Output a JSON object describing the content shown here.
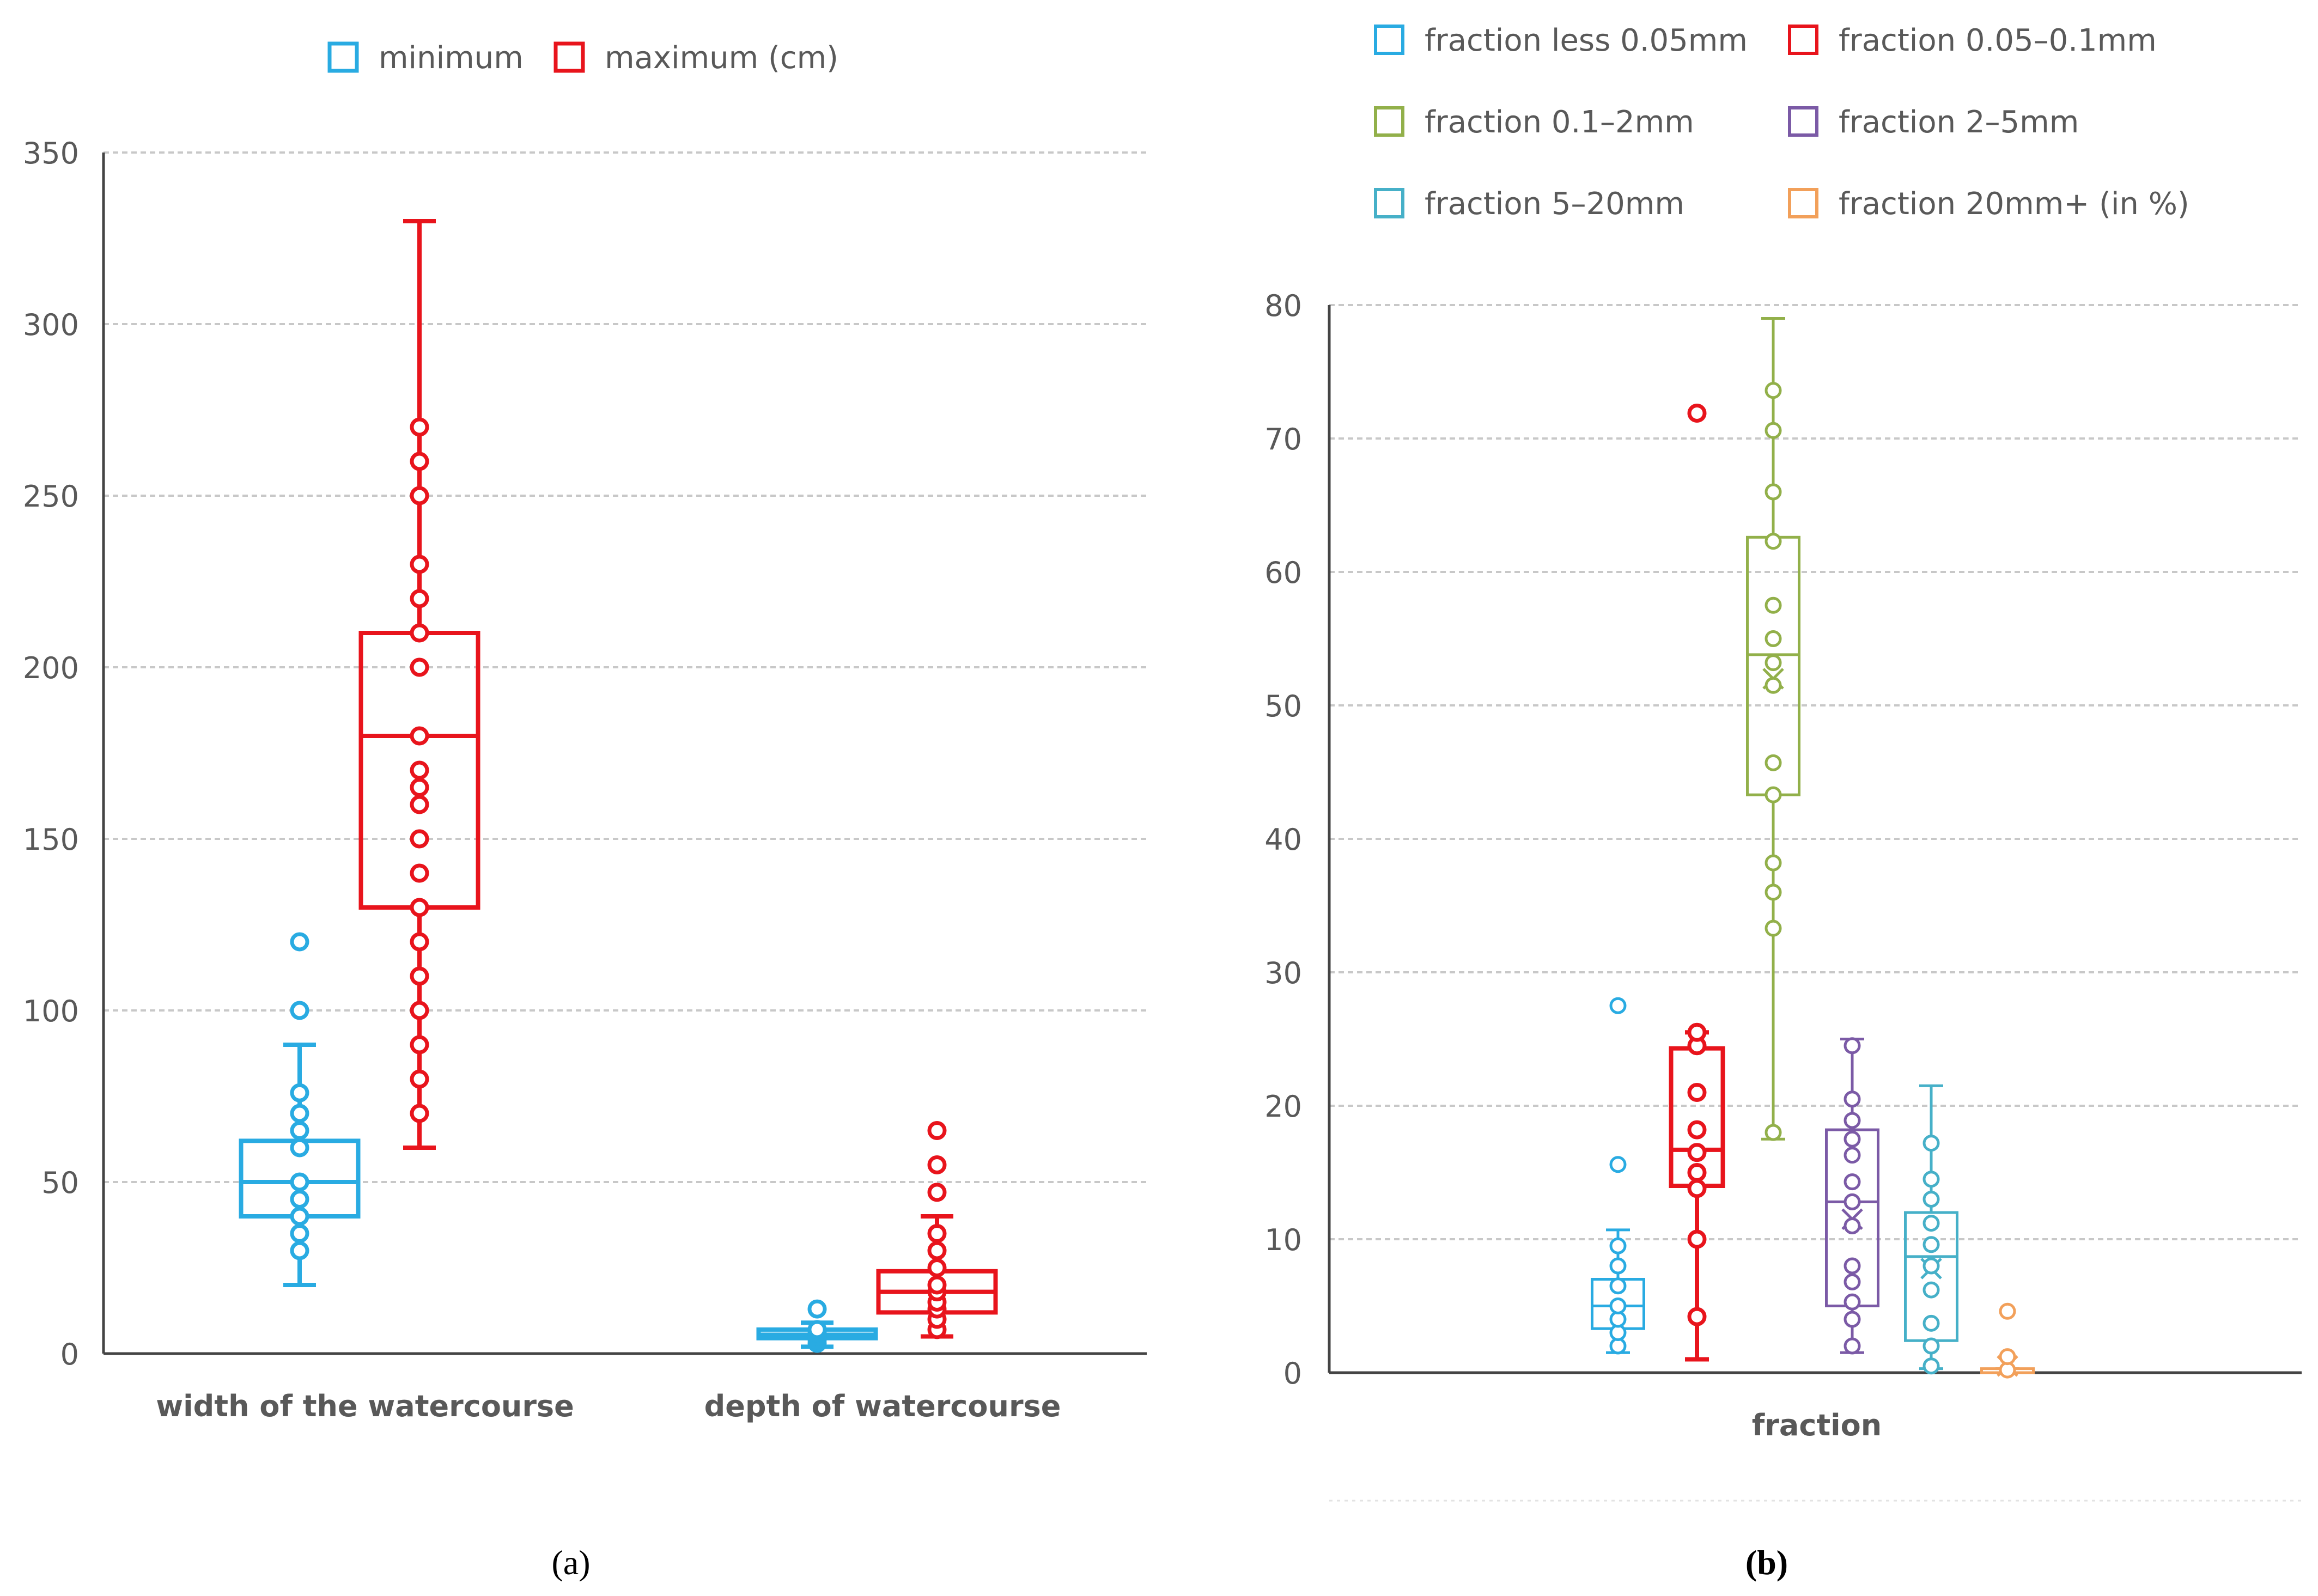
{
  "colors": {
    "blue": "#29ABE2",
    "red": "#E8141C",
    "green": "#92B04A",
    "purple": "#7B5AA6",
    "teal": "#46B0C8",
    "orange": "#F2A05A",
    "grid": "#C8C8C8",
    "axis": "#444444",
    "text": "#595959"
  },
  "panels": {
    "a": {
      "caption": "(a)"
    },
    "b": {
      "caption": "(b)"
    }
  },
  "chart_data": [
    {
      "type": "box",
      "panel": "a",
      "title": "",
      "xlabel": "",
      "ylabel": "",
      "ylim": [
        0,
        350
      ],
      "yticks": [
        0,
        50,
        100,
        150,
        200,
        250,
        300,
        350
      ],
      "ytick_labels": [
        "0",
        "50",
        "100",
        "150",
        "200",
        "250",
        "300",
        "350"
      ],
      "grid": true,
      "legend_position": "top-center",
      "categories": [
        "width of the watercourse",
        "depth of watercourse"
      ],
      "series": [
        {
          "name": "minimum",
          "color": "#29ABE2",
          "boxes": [
            {
              "category": 0,
              "whisker_low": 20,
              "q1": 40,
              "median": 50,
              "q3": 62,
              "whisker_high": 90,
              "points": [
                30,
                35,
                40,
                45,
                50,
                60,
                65,
                70,
                76,
                100,
                120
              ]
            },
            {
              "category": 1,
              "whisker_low": 2,
              "q1": 4.5,
              "median": 5.5,
              "q3": 7,
              "whisker_high": 9,
              "points": [
                3,
                4,
                5,
                6,
                7,
                13
              ]
            }
          ]
        },
        {
          "name": "maximum (cm)",
          "color": "#E8141C",
          "boxes": [
            {
              "category": 0,
              "whisker_low": 60,
              "q1": 130,
              "median": 180,
              "q3": 210,
              "whisker_high": 330,
              "points": [
                70,
                80,
                90,
                100,
                110,
                120,
                130,
                140,
                150,
                160,
                165,
                170,
                180,
                200,
                210,
                220,
                230,
                250,
                260,
                270
              ]
            },
            {
              "category": 1,
              "whisker_low": 5,
              "q1": 12,
              "median": 18,
              "q3": 24,
              "whisker_high": 40,
              "points": [
                7,
                10,
                13,
                15,
                18,
                20,
                25,
                30,
                35,
                47,
                55,
                65
              ]
            }
          ]
        }
      ]
    },
    {
      "type": "box",
      "panel": "b",
      "title": "",
      "xlabel": "fraction",
      "ylabel": "",
      "ylim": [
        0,
        80
      ],
      "yticks": [
        0,
        10,
        20,
        30,
        40,
        50,
        60,
        70,
        80
      ],
      "ytick_labels": [
        "0",
        "10",
        "20",
        "30",
        "40",
        "50",
        "60",
        "70",
        "80"
      ],
      "grid": true,
      "legend_position": "top",
      "series": [
        {
          "name": "fraction less 0.05mm",
          "color": "#29ABE2",
          "whisker_low": 1.5,
          "q1": 3.3,
          "median": 5,
          "q3": 7,
          "whisker_high": 10.7,
          "mean": null,
          "points": [
            2,
            3,
            4,
            5,
            6.5,
            8,
            9.5,
            15.6,
            27.5
          ]
        },
        {
          "name": "fraction 0.05–0.1mm",
          "color": "#E8141C",
          "whisker_low": 1,
          "q1": 14,
          "median": 16.7,
          "q3": 24.3,
          "whisker_high": 25.5,
          "mean": null,
          "points": [
            4.2,
            10,
            13.8,
            15,
            16.5,
            18.2,
            21,
            24.5,
            25.5,
            71.9
          ]
        },
        {
          "name": "fraction 0.1–2mm",
          "color": "#92B04A",
          "whisker_low": 17.5,
          "q1": 43.3,
          "median": 53.8,
          "q3": 62.6,
          "whisker_high": 79,
          "mean": 52,
          "points": [
            18,
            33.3,
            36,
            38.2,
            43.3,
            45.7,
            51.5,
            53.2,
            55,
            57.5,
            62.3,
            66,
            70.6,
            73.6
          ]
        },
        {
          "name": "fraction 2–5mm",
          "color": "#7B5AA6",
          "whisker_low": 1.5,
          "q1": 5,
          "median": 12.8,
          "q3": 18.2,
          "whisker_high": 25,
          "mean": 11.5,
          "points": [
            2,
            4,
            5.3,
            6.8,
            8,
            11,
            12.8,
            14.3,
            16.3,
            17.5,
            18.9,
            20.5,
            24.5
          ]
        },
        {
          "name": "fraction 5–20mm",
          "color": "#46B0C8",
          "whisker_low": 0.3,
          "q1": 2.4,
          "median": 8.7,
          "q3": 12,
          "whisker_high": 21.5,
          "mean": 7.8,
          "points": [
            0.5,
            2,
            3.7,
            6.2,
            8,
            9.6,
            11.2,
            13,
            14.5,
            17.2
          ]
        },
        {
          "name": "fraction 20mm+ (in %)",
          "color": "#F2A05A",
          "whisker_low": 0,
          "q1": 0,
          "median": 0,
          "q3": 0.3,
          "whisker_high": 0.3,
          "mean": 0.5,
          "points": [
            0.2,
            1.2,
            4.6
          ]
        }
      ]
    }
  ]
}
